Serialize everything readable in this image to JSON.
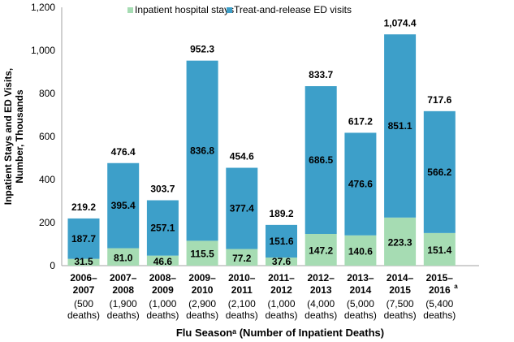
{
  "chart_data": {
    "type": "bar",
    "stacked": true,
    "xlabel": "Flu Seasonᵃ (Number of Inpatient Deaths)",
    "ylabel": "Inpatient Stays and ED Visits, Number, Thousands",
    "ylim": [
      0,
      1200
    ],
    "yticks": [
      "0",
      "200",
      "400",
      "600",
      "800",
      "1,000",
      "1,200"
    ],
    "ytick_values": [
      0,
      200,
      400,
      600,
      800,
      1000,
      1200
    ],
    "legend_position": "top",
    "categories": [
      {
        "season": "2006–",
        "season2": "2007",
        "deaths": "(500",
        "deaths2": "deaths)"
      },
      {
        "season": "2007–",
        "season2": "2008",
        "deaths": "(1,900",
        "deaths2": "deaths)"
      },
      {
        "season": "2008–",
        "season2": "2009",
        "deaths": "(1,000",
        "deaths2": "deaths)"
      },
      {
        "season": "2009–",
        "season2": "2010",
        "deaths": "(2,900",
        "deaths2": "deaths)"
      },
      {
        "season": "2010–",
        "season2": "2011",
        "deaths": "(2,100",
        "deaths2": "deaths)"
      },
      {
        "season": "2011–",
        "season2": "2012",
        "deaths": "(1,000",
        "deaths2": "deaths)"
      },
      {
        "season": "2012–",
        "season2": "2013",
        "deaths": "(4,000",
        "deaths2": "deaths)"
      },
      {
        "season": "2013–",
        "season2": "2014",
        "deaths": "(5,000",
        "deaths2": "deaths)"
      },
      {
        "season": "2014–",
        "season2": "2015",
        "deaths": "(7,500",
        "deaths2": "deaths)"
      },
      {
        "season": "2015–",
        "season2": "2016",
        "sup": "a",
        "deaths": "(5,400",
        "deaths2": "deaths)"
      }
    ],
    "series": [
      {
        "name": "Inpatient hospital stays",
        "color": "#a6dcb3",
        "values": [
          31.5,
          81.0,
          46.6,
          115.5,
          77.2,
          37.6,
          147.2,
          140.6,
          223.3,
          151.4
        ],
        "labels": [
          "31.5",
          "81.0",
          "46.6",
          "115.5",
          "77.2",
          "37.6",
          "147.2",
          "140.6",
          "223.3",
          "151.4"
        ]
      },
      {
        "name": "Treat-and-release ED visits",
        "color": "#3d9fc9",
        "values": [
          187.7,
          395.4,
          257.1,
          836.8,
          377.4,
          151.6,
          686.5,
          476.6,
          851.1,
          566.2
        ],
        "labels": [
          "187.7",
          "395.4",
          "257.1",
          "836.8",
          "377.4",
          "151.6",
          "686.5",
          "476.6",
          "851.1",
          "566.2"
        ]
      }
    ],
    "totals": [
      "219.2",
      "476.4",
      "303.7",
      "952.3",
      "454.6",
      "189.2",
      "833.7",
      "617.2",
      "1,074.4",
      "717.6"
    ]
  }
}
